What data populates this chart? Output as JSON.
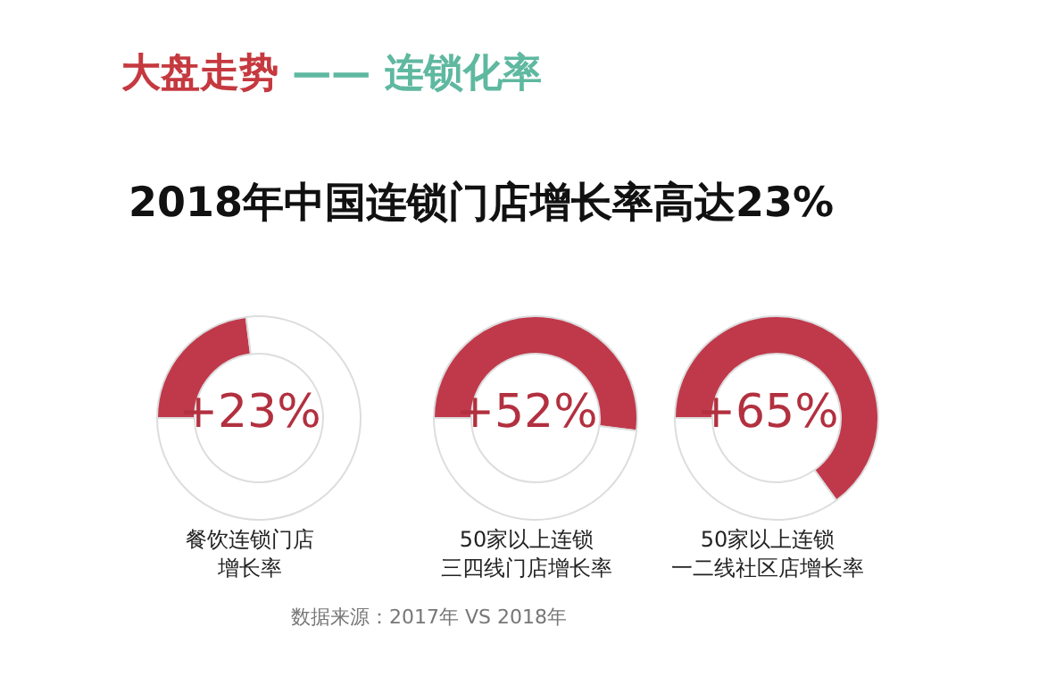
{
  "chart_data": [
    {
      "type": "other",
      "title": "大盘走势 —— 连锁化率",
      "subtitle": "2018年中国连锁门店增长率高达23%",
      "annotations": [
        "数据来源：2017年 VS 2018年"
      ]
    },
    {
      "type": "donut",
      "title": "餐饮连锁门店增长率",
      "categories": [
        null,
        null
      ],
      "values": [
        23,
        77
      ],
      "colors": [
        "#c0394b",
        "#ffffff"
      ],
      "annotations": [
        "+23%"
      ]
    },
    {
      "type": "donut",
      "title": "50家以上连锁三四线门店增长率",
      "categories": [
        null,
        null
      ],
      "values": [
        52,
        48
      ],
      "colors": [
        "#c0394b",
        "#ffffff"
      ],
      "annotations": [
        "+52%"
      ]
    },
    {
      "type": "donut",
      "title": "50家以上连锁一二线社区店增长率",
      "categories": [
        null,
        null
      ],
      "values": [
        65,
        35
      ],
      "colors": [
        "#c0394b",
        "#ffffff"
      ],
      "annotations": [
        "+65%"
      ]
    }
  ]
}
